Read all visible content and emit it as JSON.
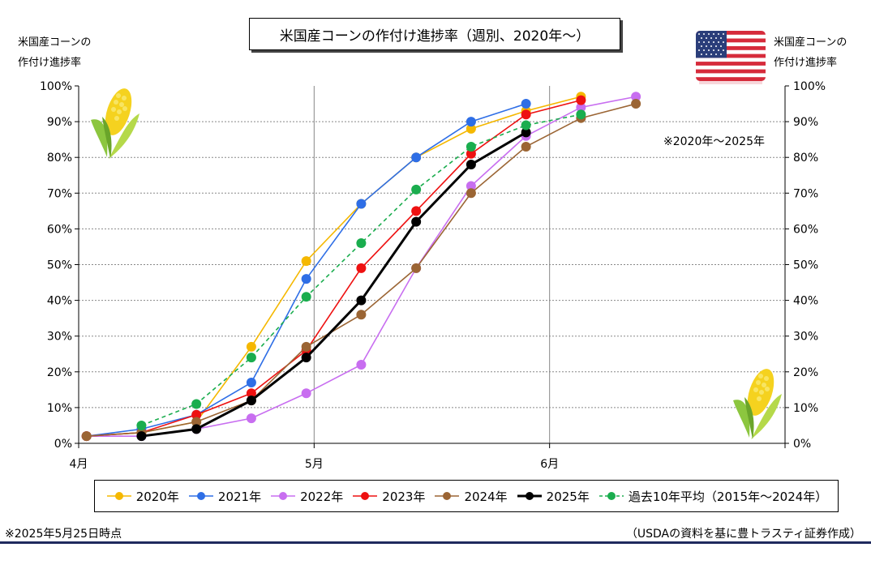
{
  "title": "米国産コーンの作付け進捗率（週別、2020年〜）",
  "left_axis_label": [
    "米国産コーンの",
    "作付け進捗率"
  ],
  "right_axis_label": [
    "米国産コーンの",
    "作付け進捗率"
  ],
  "period_note": "※2020年〜2025年",
  "footnote_left": "※2025年5月25日時点",
  "footnote_right": "（USDAの資料を基に豊トラスティ証券作成）",
  "icons": {
    "flag": "us-flag-icon",
    "corn": "corn-icon"
  },
  "chart_data": {
    "type": "line",
    "title": "米国産コーンの作付け進捗率（週別、2020年〜）",
    "x_axis": {
      "ticks": [
        {
          "label": "4月",
          "day": 0
        },
        {
          "label": "5月",
          "day": 30
        },
        {
          "label": "6月",
          "day": 60
        },
        {
          "label": "",
          "day": 90
        }
      ],
      "range": [
        0,
        90
      ]
    },
    "y_axis": {
      "range": [
        0,
        100
      ],
      "ticks": [
        "0%",
        "10%",
        "20%",
        "30%",
        "40%",
        "50%",
        "60%",
        "70%",
        "80%",
        "90%",
        "100%"
      ]
    },
    "grid": true,
    "legend_position": "bottom",
    "series": [
      {
        "name": "2020年",
        "color": "#f5b800",
        "dashed": false,
        "thick": false,
        "x": [
          1,
          8,
          15,
          22,
          29,
          36,
          43,
          50,
          57,
          64
        ],
        "values": [
          2,
          3,
          6,
          27,
          51,
          67,
          80,
          88,
          93,
          97
        ]
      },
      {
        "name": "2021年",
        "color": "#2e6ee6",
        "dashed": false,
        "thick": false,
        "x": [
          1,
          8,
          15,
          22,
          29,
          36,
          43,
          50,
          57
        ],
        "values": [
          2,
          4,
          8,
          17,
          46,
          67,
          80,
          90,
          95
        ]
      },
      {
        "name": "2022年",
        "color": "#c86ef0",
        "dashed": false,
        "thick": false,
        "x": [
          1,
          8,
          15,
          22,
          29,
          36,
          43,
          50,
          57,
          64,
          71
        ],
        "values": [
          2,
          2,
          4,
          7,
          14,
          22,
          49,
          72,
          86,
          94,
          97
        ]
      },
      {
        "name": "2023年",
        "color": "#ee1111",
        "dashed": false,
        "thick": false,
        "x": [
          1,
          8,
          15,
          22,
          29,
          36,
          43,
          50,
          57,
          64
        ],
        "values": [
          2,
          3,
          8,
          14,
          26,
          49,
          65,
          81,
          92,
          96
        ]
      },
      {
        "name": "2024年",
        "color": "#9b6534",
        "dashed": false,
        "thick": false,
        "x": [
          1,
          8,
          15,
          22,
          29,
          36,
          43,
          50,
          57,
          64,
          71
        ],
        "values": [
          2,
          3,
          6,
          12,
          27,
          36,
          49,
          70,
          83,
          91,
          95
        ]
      },
      {
        "name": "2025年",
        "color": "#000000",
        "dashed": false,
        "thick": true,
        "x": [
          8,
          15,
          22,
          29,
          36,
          43,
          50,
          57
        ],
        "values": [
          2,
          4,
          12,
          24,
          40,
          62,
          78,
          87
        ]
      },
      {
        "name": "過去10年平均（2015年〜2024年）",
        "color": "#1aad4e",
        "dashed": true,
        "thick": false,
        "x": [
          8,
          15,
          22,
          29,
          36,
          43,
          50,
          57,
          64
        ],
        "values": [
          5,
          11,
          24,
          41,
          56,
          71,
          83,
          89,
          92
        ]
      }
    ]
  }
}
